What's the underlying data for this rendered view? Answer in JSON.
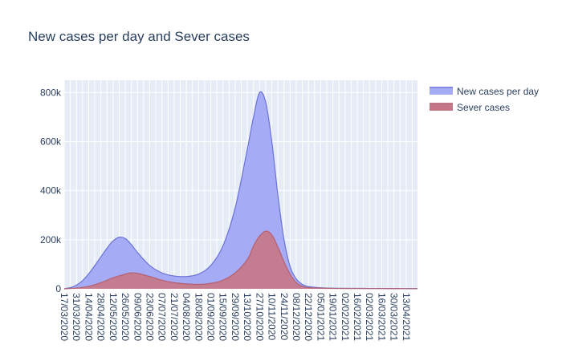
{
  "chart_data": {
    "type": "area",
    "title": "New cases per day and Sever cases",
    "xlabel": "",
    "ylabel": "",
    "ylim": [
      0,
      850000
    ],
    "y_ticks": [
      0,
      200000,
      400000,
      600000,
      800000
    ],
    "y_tick_labels": [
      "0",
      "200k",
      "400k",
      "600k",
      "800k"
    ],
    "x_tick_labels": [
      "17/03/2020",
      "31/03/2020",
      "14/04/2020",
      "28/04/2020",
      "12/05/2020",
      "26/05/2020",
      "09/06/2020",
      "23/06/2020",
      "07/07/2020",
      "21/07/2020",
      "04/08/2020",
      "18/08/2020",
      "01/09/2020",
      "15/09/2020",
      "29/09/2020",
      "13/10/2020",
      "27/10/2020",
      "10/11/2020",
      "24/11/2020",
      "08/12/2020",
      "22/12/2020",
      "05/01/2021",
      "19/01/2021",
      "02/02/2021",
      "16/02/2021",
      "02/03/2021",
      "16/03/2021",
      "30/03/2021",
      "13/04/2021"
    ],
    "x_day_offsets": [
      0,
      14,
      28,
      42,
      56,
      70,
      84,
      98,
      112,
      126,
      140,
      154,
      168,
      182,
      196,
      210,
      224,
      238,
      252,
      266,
      280,
      294,
      308,
      322,
      336,
      350,
      364,
      378,
      392
    ],
    "x_range_days": [
      0,
      405
    ],
    "grid": true,
    "legend_position": "top-right",
    "series": [
      {
        "name": "New cases per day",
        "color": "#636efa",
        "fill": "#a6abf6",
        "line": "#6a72d8",
        "days": [
          0,
          10,
          20,
          30,
          40,
          50,
          56,
          63,
          70,
          77,
          84,
          98,
          112,
          126,
          140,
          154,
          168,
          182,
          196,
          210,
          217,
          224,
          231,
          238,
          245,
          252,
          259,
          266,
          273,
          280,
          294,
          308,
          322,
          336,
          350,
          364,
          378,
          392,
          405
        ],
        "values": [
          0,
          8000,
          30000,
          70000,
          120000,
          170000,
          195000,
          210000,
          205000,
          180000,
          148000,
          95000,
          65000,
          52000,
          50000,
          60000,
          95000,
          175000,
          330000,
          570000,
          700000,
          800000,
          760000,
          600000,
          380000,
          200000,
          90000,
          40000,
          18000,
          9000,
          4000,
          2500,
          2000,
          1800,
          1500,
          1500,
          1200,
          1000,
          800
        ]
      },
      {
        "name": "Sever cases",
        "color": "#ef553b",
        "fill": "#c57787",
        "line": "#b56070",
        "days": [
          0,
          14,
          28,
          42,
          56,
          70,
          77,
          84,
          98,
          112,
          126,
          140,
          154,
          168,
          182,
          196,
          210,
          217,
          224,
          231,
          238,
          245,
          252,
          259,
          266,
          273,
          280,
          294,
          308,
          322,
          336,
          350,
          364,
          378,
          392,
          405
        ],
        "values": [
          0,
          3000,
          10000,
          25000,
          45000,
          60000,
          65000,
          63000,
          50000,
          35000,
          25000,
          20000,
          18000,
          22000,
          35000,
          65000,
          120000,
          175000,
          215000,
          235000,
          220000,
          170000,
          110000,
          60000,
          25000,
          10000,
          5000,
          2500,
          1500,
          1000,
          1000,
          1000,
          1000,
          800,
          600,
          500
        ]
      }
    ]
  }
}
